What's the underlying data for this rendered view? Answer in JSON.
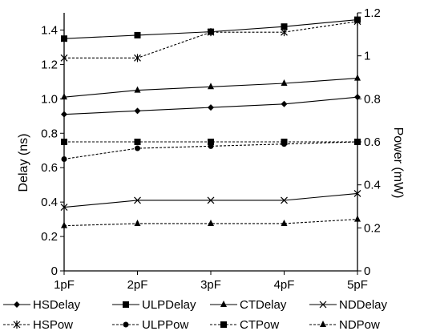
{
  "chart_data": {
    "type": "line",
    "categories": [
      "1pF",
      "2pF",
      "3pF",
      "4pF",
      "5pF"
    ],
    "xlabel": "",
    "ylabel": "Delay (ns)",
    "y2label": "Power (mW)",
    "ylim": [
      0,
      1.5
    ],
    "y2lim": [
      0,
      1.2
    ],
    "yticks": [
      "0",
      "0.2",
      "0.4",
      "0.6",
      "0.8",
      "1.0",
      "1.2",
      "1.4"
    ],
    "y2ticks": [
      "0",
      "0.2",
      "0.4",
      "0.6",
      "0.8",
      "1",
      "1.2"
    ],
    "grid": false,
    "legend_position": "bottom",
    "series": [
      {
        "name": "HSDelay",
        "axis": "left",
        "marker": "diamond",
        "dash": "solid",
        "values": [
          0.91,
          0.93,
          0.95,
          0.97,
          1.01
        ]
      },
      {
        "name": "ULPDelay",
        "axis": "left",
        "marker": "square",
        "dash": "solid",
        "values": [
          1.35,
          1.37,
          1.39,
          1.42,
          1.46
        ]
      },
      {
        "name": "CTDelay",
        "axis": "left",
        "marker": "triangle",
        "dash": "solid",
        "values": [
          1.01,
          1.05,
          1.07,
          1.09,
          1.12
        ]
      },
      {
        "name": "NDDelay",
        "axis": "left",
        "marker": "x",
        "dash": "solid",
        "values": [
          0.37,
          0.41,
          0.41,
          0.41,
          0.45
        ]
      },
      {
        "name": "HSPow",
        "axis": "right",
        "marker": "star",
        "dash": "dashed",
        "values": [
          0.99,
          0.99,
          1.11,
          1.11,
          1.16
        ]
      },
      {
        "name": "ULPPow",
        "axis": "right",
        "marker": "circle",
        "dash": "dashed",
        "values": [
          0.52,
          0.57,
          0.58,
          0.59,
          0.6
        ]
      },
      {
        "name": "CTPow",
        "axis": "right",
        "marker": "square",
        "dash": "dashed",
        "values": [
          0.6,
          0.6,
          0.6,
          0.6,
          0.6
        ]
      },
      {
        "name": "NDPow",
        "axis": "right",
        "marker": "triangle",
        "dash": "dashed",
        "values": [
          0.21,
          0.22,
          0.22,
          0.22,
          0.24
        ]
      }
    ]
  }
}
